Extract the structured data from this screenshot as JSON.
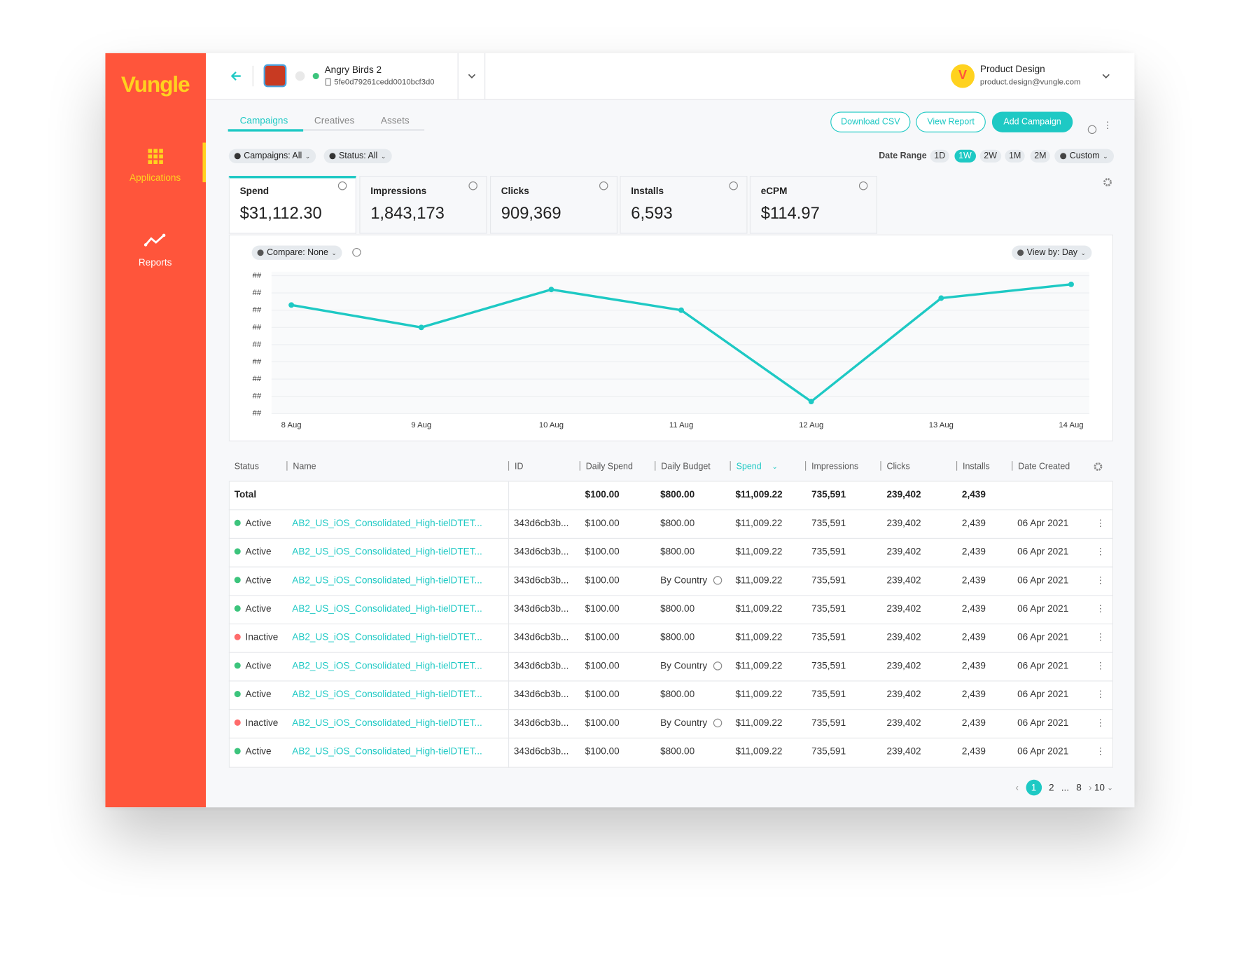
{
  "sidebar": {
    "logo": "Vungle",
    "nav": [
      "Applications",
      "Reports"
    ],
    "active_nav": 0
  },
  "header": {
    "app_name": "Angry Birds 2",
    "app_id": "5fe0d79261cedd0010bcf3d0",
    "user_name": "Product Design",
    "user_email": "product.design@vungle.com"
  },
  "tabs": [
    "Campaigns",
    "Creatives",
    "Assets"
  ],
  "active_tab": 0,
  "actions": [
    "Download CSV",
    "View Report",
    "Add Campaign"
  ],
  "filters": [
    "Campaigns: All",
    "Status: All"
  ],
  "date_range": {
    "label": "Date Range",
    "options": [
      "1D",
      "1W",
      "2W",
      "1M",
      "2M",
      "Custom"
    ],
    "selected": 1
  },
  "metrics": [
    {
      "label": "Spend",
      "value": "$31,112.30"
    },
    {
      "label": "Impressions",
      "value": "1,843,173"
    },
    {
      "label": "Clicks",
      "value": "909,369"
    },
    {
      "label": "Installs",
      "value": "6,593"
    },
    {
      "label": "eCPM",
      "value": "$114.97"
    }
  ],
  "active_metric": 0,
  "chart_data": {
    "type": "line",
    "compare": "Compare: None",
    "view_by": "View by: Day",
    "categories": [
      "8 Aug",
      "9 Aug",
      "10 Aug",
      "11 Aug",
      "12 Aug",
      "13 Aug",
      "14 Aug"
    ],
    "values": [
      6.3,
      5.0,
      7.2,
      6.0,
      0.7,
      6.7,
      7.5
    ],
    "color": "#1ec9c4",
    "ylim": [
      0,
      8
    ],
    "yticks": [
      {
        "value": 0,
        "label": "##"
      },
      {
        "value": 1,
        "label": "##"
      },
      {
        "value": 2,
        "label": "##"
      },
      {
        "value": 3,
        "label": "##"
      },
      {
        "value": 4,
        "label": "##"
      },
      {
        "value": 5,
        "label": "##"
      },
      {
        "value": 6,
        "label": "##"
      },
      {
        "value": 7,
        "label": "##"
      },
      {
        "value": 8,
        "label": "##"
      }
    ],
    "grid": true
  },
  "table": {
    "columns": [
      "Status",
      "Name",
      "ID",
      "Daily Spend",
      "Daily Budget",
      "Spend",
      "Impressions",
      "Clicks",
      "Installs",
      "Date Created"
    ],
    "sort_column": 5,
    "total": {
      "label": "Total",
      "daily_spend": "$100.00",
      "daily_budget": "$800.00",
      "spend": "$11,009.22",
      "impressions": "735,591",
      "clicks": "239,402",
      "installs": "2,439"
    },
    "rows": [
      {
        "status": "Active",
        "active": true,
        "name": "AB2_US_iOS_Consolidated_High-tielDTET...",
        "id": "343d6cb3b...",
        "daily_spend": "$100.00",
        "daily_budget": "$800.00",
        "budget_info": false,
        "spend": "$11,009.22",
        "impressions": "735,591",
        "clicks": "239,402",
        "installs": "2,439",
        "date_created": "06 Apr 2021"
      },
      {
        "status": "Active",
        "active": true,
        "name": "AB2_US_iOS_Consolidated_High-tielDTET...",
        "id": "343d6cb3b...",
        "daily_spend": "$100.00",
        "daily_budget": "$800.00",
        "budget_info": false,
        "spend": "$11,009.22",
        "impressions": "735,591",
        "clicks": "239,402",
        "installs": "2,439",
        "date_created": "06 Apr 2021"
      },
      {
        "status": "Active",
        "active": true,
        "name": "AB2_US_iOS_Consolidated_High-tielDTET...",
        "id": "343d6cb3b...",
        "daily_spend": "$100.00",
        "daily_budget": "By Country",
        "budget_info": true,
        "spend": "$11,009.22",
        "impressions": "735,591",
        "clicks": "239,402",
        "installs": "2,439",
        "date_created": "06 Apr 2021"
      },
      {
        "status": "Active",
        "active": true,
        "name": "AB2_US_iOS_Consolidated_High-tielDTET...",
        "id": "343d6cb3b...",
        "daily_spend": "$100.00",
        "daily_budget": "$800.00",
        "budget_info": false,
        "spend": "$11,009.22",
        "impressions": "735,591",
        "clicks": "239,402",
        "installs": "2,439",
        "date_created": "06 Apr 2021"
      },
      {
        "status": "Inactive",
        "active": false,
        "name": "AB2_US_iOS_Consolidated_High-tielDTET...",
        "id": "343d6cb3b...",
        "daily_spend": "$100.00",
        "daily_budget": "$800.00",
        "budget_info": false,
        "spend": "$11,009.22",
        "impressions": "735,591",
        "clicks": "239,402",
        "installs": "2,439",
        "date_created": "06 Apr 2021"
      },
      {
        "status": "Active",
        "active": true,
        "name": "AB2_US_iOS_Consolidated_High-tielDTET...",
        "id": "343d6cb3b...",
        "daily_spend": "$100.00",
        "daily_budget": "By Country",
        "budget_info": true,
        "spend": "$11,009.22",
        "impressions": "735,591",
        "clicks": "239,402",
        "installs": "2,439",
        "date_created": "06 Apr 2021"
      },
      {
        "status": "Active",
        "active": true,
        "name": "AB2_US_iOS_Consolidated_High-tielDTET...",
        "id": "343d6cb3b...",
        "daily_spend": "$100.00",
        "daily_budget": "$800.00",
        "budget_info": false,
        "spend": "$11,009.22",
        "impressions": "735,591",
        "clicks": "239,402",
        "installs": "2,439",
        "date_created": "06 Apr 2021"
      },
      {
        "status": "Inactive",
        "active": false,
        "name": "AB2_US_iOS_Consolidated_High-tielDTET...",
        "id": "343d6cb3b...",
        "daily_spend": "$100.00",
        "daily_budget": "By Country",
        "budget_info": true,
        "spend": "$11,009.22",
        "impressions": "735,591",
        "clicks": "239,402",
        "installs": "2,439",
        "date_created": "06 Apr 2021"
      },
      {
        "status": "Active",
        "active": true,
        "name": "AB2_US_iOS_Consolidated_High-tielDTET...",
        "id": "343d6cb3b...",
        "daily_spend": "$100.00",
        "daily_budget": "$800.00",
        "budget_info": false,
        "spend": "$11,009.22",
        "impressions": "735,591",
        "clicks": "239,402",
        "installs": "2,439",
        "date_created": "06 Apr 2021"
      }
    ]
  },
  "pagination": {
    "pages": [
      "1",
      "2",
      "...",
      "8"
    ],
    "page_size": "10",
    "current": 0
  }
}
